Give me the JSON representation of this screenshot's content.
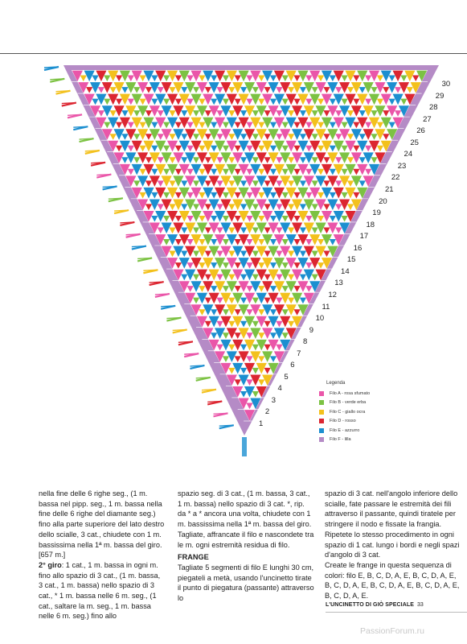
{
  "colors": {
    "A": "#ea56a9",
    "B": "#7cc243",
    "C": "#f3c11d",
    "D": "#dc2631",
    "E": "#1c8fd0",
    "F": "#b58bc6"
  },
  "chart": {
    "row_labels": [
      "1",
      "2",
      "3",
      "4",
      "5",
      "6",
      "7",
      "8",
      "9",
      "10",
      "11",
      "12",
      "13",
      "14",
      "15",
      "16",
      "17",
      "18",
      "19",
      "20",
      "21",
      "22",
      "23",
      "24",
      "25",
      "26",
      "27",
      "28",
      "29",
      "30"
    ]
  },
  "legend": {
    "title": "Legenda",
    "items": [
      {
        "color_key": "A",
        "label": "Filo A - rosa sfumato"
      },
      {
        "color_key": "B",
        "label": "Filo B - verde erba"
      },
      {
        "color_key": "C",
        "label": "Filo C - giallo ocra"
      },
      {
        "color_key": "D",
        "label": "Filo D - rosso"
      },
      {
        "color_key": "E",
        "label": "Filo E - azzurro"
      },
      {
        "color_key": "F",
        "label": "Filo F - lilla"
      }
    ]
  },
  "text": {
    "col1_p1": "nella fine delle 6 righe seg., (1 m. bassa nel pipp. seg., 1 m. bassa nella fine delle 6 righe del diamante seg.) fino alla parte superiore del lato destro dello scialle, 3 cat., chiudete con 1 m. bassissima nella 1ª m. bassa del giro. [657 m.]",
    "col1_head": "2° giro",
    "col1_p2": ": 1 cat., 1 m. bassa in ogni m. fino allo spazio di 3 cat., (1 m. bassa, 3 cat., 1 m. bassa) nello spazio di 3 cat., * 1 m. bassa nelle 6 m. seg., (1 cat., saltare la m. seg., 1 m. bassa nelle 6 m. seg.) fino allo",
    "col2_p1": "spazio seg. di 3 cat., (1 m. bassa, 3 cat., 1 m. bassa) nello spazio di 3 cat. *, rip. da * a * ancora una volta, chiudete con 1 m. bassissima nella 1ª m. bassa del giro. Tagliate, affrancate il filo e nascondete tra le m. ogni estremità residua di filo.",
    "col2_head": "FRANGE",
    "col2_p2": "Tagliate 5 segmenti di filo E lunghi 30 cm, piegateli a metà, usando l'uncinetto tirate il punto di piegatura (passante) attraverso lo",
    "col3_p1": "spazio di 3 cat. nell'angolo inferiore dello scialle, fate passare le estremità dei fili attraverso il passante, quindi tiratele per stringere il nodo e fissate la frangia.",
    "col3_p2": "Ripetete lo stesso procedimento in ogni spazio di 1 cat. lungo i bordi e negli spazi d'angolo di 3 cat.",
    "col3_p3": "Create le frange in questa sequenza di colori: filo E, B, C, D, A, E, B, C, D, A, E, B, C, D, A, E, B, C, D, A, E, B, C, D, A, E, B, C, D, A, E."
  },
  "footer": {
    "title": "L'UNCINETTO DI GIÒ SPECIALE",
    "page": "33"
  },
  "watermark": "PassionForum.ru"
}
